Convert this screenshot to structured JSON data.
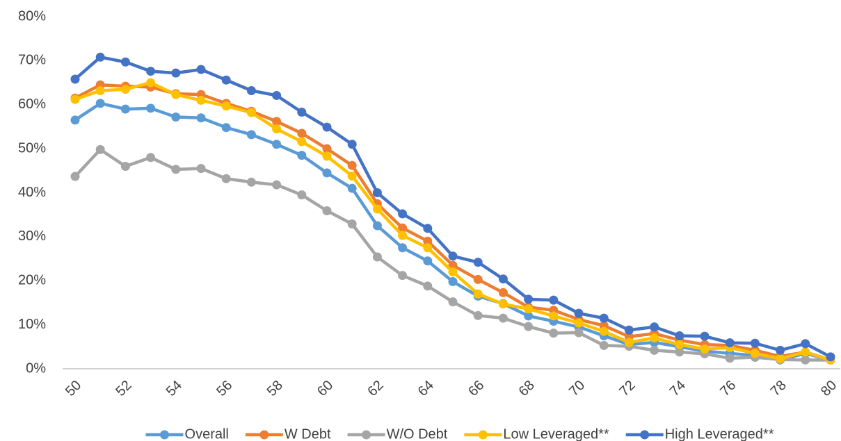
{
  "chart_data": {
    "type": "line",
    "x": [
      50,
      51,
      52,
      53,
      54,
      55,
      56,
      57,
      58,
      59,
      60,
      61,
      62,
      63,
      64,
      65,
      66,
      67,
      68,
      69,
      70,
      71,
      72,
      73,
      74,
      75,
      76,
      77,
      78,
      79,
      80
    ],
    "xlim": [
      50,
      80
    ],
    "xticks": [
      50,
      52,
      54,
      56,
      58,
      60,
      62,
      64,
      66,
      68,
      70,
      72,
      74,
      76,
      78,
      80
    ],
    "ylim": [
      0,
      80
    ],
    "yticks": [
      {
        "value": 0,
        "label": "0%"
      },
      {
        "value": 10,
        "label": "10%"
      },
      {
        "value": 20,
        "label": "20%"
      },
      {
        "value": 30,
        "label": "30%"
      },
      {
        "value": 40,
        "label": "40%"
      },
      {
        "value": 50,
        "label": "50%"
      },
      {
        "value": 60,
        "label": "60%"
      },
      {
        "value": 70,
        "label": "70%"
      },
      {
        "value": 80,
        "label": "80%"
      }
    ],
    "grid": false,
    "legend": "bottom",
    "series": [
      {
        "name": "Overall",
        "color": "#5b9bd5",
        "values": [
          56.5,
          60.3,
          59,
          59.2,
          57.2,
          57,
          54.8,
          53.2,
          51,
          48.5,
          44.5,
          41,
          32.5,
          27.5,
          24.5,
          19.8,
          16.5,
          14.8,
          12,
          10.8,
          9.5,
          7.5,
          5.5,
          6,
          5,
          4,
          3.5,
          3,
          2,
          3.5,
          2
        ]
      },
      {
        "name": "W Debt",
        "color": "#ed7d31",
        "values": [
          61.5,
          64.5,
          64.2,
          64,
          62.5,
          62.3,
          60.3,
          58.5,
          56.2,
          53.5,
          50,
          46.2,
          37.5,
          32,
          29,
          23.5,
          20.3,
          17.3,
          14,
          13.3,
          11.2,
          9.8,
          7.3,
          8,
          6.5,
          5.5,
          5.3,
          4.2,
          2.8,
          3.8,
          2
        ]
      },
      {
        "name": "W/O Debt",
        "color": "#a5a5a5",
        "values": [
          43.7,
          49.8,
          46,
          48,
          45.3,
          45.5,
          43.2,
          42.4,
          41.8,
          39.5,
          35.9,
          32.9,
          25.4,
          21.2,
          18.8,
          15.2,
          12.1,
          11.5,
          9.6,
          8.1,
          8.2,
          5.3,
          5.1,
          4.2,
          3.8,
          3.4,
          2.4,
          2.6,
          2.1,
          2,
          2
        ]
      },
      {
        "name": "Low Leveraged**",
        "color": "#ffc000",
        "values": [
          61.2,
          63.2,
          63.5,
          65,
          62.3,
          61,
          59.7,
          58.2,
          54.5,
          51.6,
          48.3,
          43.8,
          36.3,
          30.3,
          27.5,
          22,
          17,
          14.7,
          13.6,
          12,
          10.4,
          8.5,
          6,
          7,
          5.5,
          4.5,
          4.8,
          3.5,
          2.3,
          3.8,
          2
        ]
      },
      {
        "name": "High Leveraged**",
        "color": "#4472c4",
        "values": [
          65.8,
          70.8,
          69.7,
          67.6,
          67.2,
          68,
          65.6,
          63.2,
          62.1,
          58.3,
          54.9,
          51,
          40,
          35.2,
          31.9,
          25.6,
          24.2,
          20.4,
          15.8,
          15.6,
          12.6,
          11.5,
          8.8,
          9.5,
          7.5,
          7.4,
          5.9,
          5.8,
          4.2,
          5.7,
          2.7
        ]
      }
    ]
  }
}
